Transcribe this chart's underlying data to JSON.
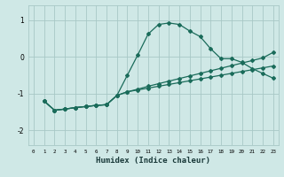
{
  "xlabel": "Humidex (Indice chaleur)",
  "bg_color": "#cfe8e6",
  "grid_color": "#a8c8c6",
  "line_color": "#1a6b5a",
  "xlim": [
    -0.5,
    23.5
  ],
  "ylim": [
    -2.4,
    1.4
  ],
  "yticks": [
    -2,
    -1,
    0,
    1
  ],
  "xticks": [
    0,
    1,
    2,
    3,
    4,
    5,
    6,
    7,
    8,
    9,
    10,
    11,
    12,
    13,
    14,
    15,
    16,
    17,
    18,
    19,
    20,
    21,
    22,
    23
  ],
  "line1_x": [
    1,
    2,
    3,
    4,
    5,
    6,
    7,
    8,
    9,
    10,
    11,
    12,
    13,
    14,
    15,
    16,
    17,
    18,
    19,
    20,
    21,
    22,
    23
  ],
  "line1_y": [
    -1.2,
    -1.45,
    -1.42,
    -1.38,
    -1.35,
    -1.32,
    -1.3,
    -1.05,
    -0.5,
    0.05,
    0.62,
    0.88,
    0.92,
    0.88,
    0.7,
    0.55,
    0.22,
    -0.05,
    -0.05,
    -0.15,
    -0.32,
    -0.45,
    -0.58
  ],
  "line2_x": [
    1,
    2,
    3,
    4,
    5,
    6,
    7,
    8,
    9,
    10,
    11,
    12,
    13,
    14,
    15,
    16,
    17,
    18,
    19,
    20,
    21,
    22,
    23
  ],
  "line2_y": [
    -1.2,
    -1.45,
    -1.42,
    -1.38,
    -1.35,
    -1.32,
    -1.3,
    -1.05,
    -0.95,
    -0.88,
    -0.8,
    -0.73,
    -0.66,
    -0.59,
    -0.52,
    -0.45,
    -0.38,
    -0.31,
    -0.24,
    -0.17,
    -0.1,
    -0.03,
    0.12
  ],
  "line3_x": [
    1,
    2,
    3,
    4,
    5,
    6,
    7,
    8,
    9,
    10,
    11,
    12,
    13,
    14,
    15,
    16,
    17,
    18,
    19,
    20,
    21,
    22,
    23
  ],
  "line3_y": [
    -1.2,
    -1.45,
    -1.42,
    -1.38,
    -1.35,
    -1.32,
    -1.3,
    -1.05,
    -0.95,
    -0.9,
    -0.85,
    -0.8,
    -0.75,
    -0.7,
    -0.65,
    -0.6,
    -0.55,
    -0.5,
    -0.45,
    -0.4,
    -0.35,
    -0.3,
    -0.25
  ]
}
